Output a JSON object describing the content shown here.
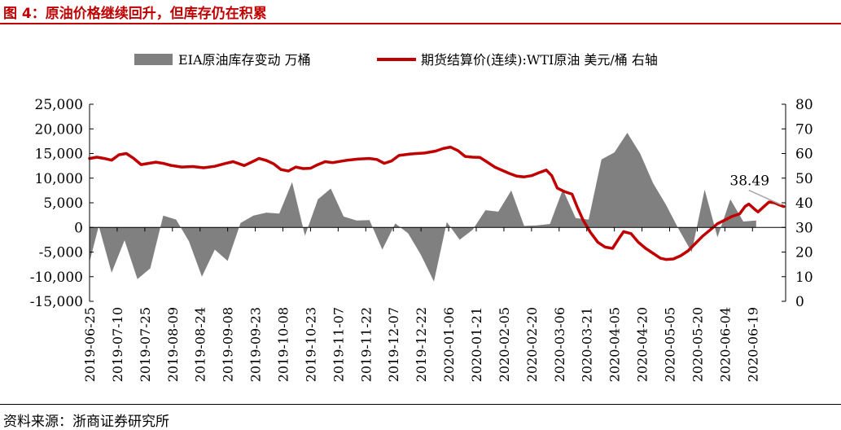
{
  "figure": {
    "title": "图 4：原油价格继续回升，但库存仍在积累",
    "source": "资料来源：浙商证券研究所"
  },
  "colors": {
    "bar": "#808080",
    "line": "#c00000",
    "title": "#c00000"
  },
  "chart_data": {
    "type": "area+line",
    "title": "原油价格继续回升，但库存仍在积累",
    "legend": [
      {
        "name": "EIA原油库存变动 万桶",
        "kind": "area",
        "axis": "left"
      },
      {
        "name": "期货结算价(连续):WTI原油 美元/桶 右轴",
        "kind": "line",
        "axis": "right"
      }
    ],
    "legend_position": "top",
    "x_tick_labels": [
      "2019-06-25",
      "2019-07-10",
      "2019-07-25",
      "2019-08-09",
      "2019-08-24",
      "2019-09-08",
      "2019-09-23",
      "2019-10-08",
      "2019-10-23",
      "2019-11-07",
      "2019-11-22",
      "2019-12-07",
      "2019-12-22",
      "2020-01-06",
      "2020-01-21",
      "2020-02-05",
      "2020-02-20",
      "2020-03-06",
      "2020-03-21",
      "2020-04-05",
      "2020-04-20",
      "2020-05-05",
      "2020-05-20",
      "2020-06-04",
      "2020-06-19"
    ],
    "x_range": [
      "2019-06-25",
      "2020-06-25"
    ],
    "left_axis": {
      "ylim": [
        -15000,
        25000
      ],
      "ticks": [
        "-15,000",
        "-10,000",
        "-5,000",
        "0",
        "5,000",
        "10,000",
        "15,000",
        "20,000",
        "25,000"
      ]
    },
    "right_axis": {
      "ylim": [
        0,
        80
      ],
      "ticks": [
        "0",
        "10",
        "20",
        "30",
        "40",
        "50",
        "60",
        "70",
        "80"
      ]
    },
    "inventory_change": [
      {
        "day": 0,
        "value": -7000
      },
      {
        "day": 5,
        "value": 300
      },
      {
        "day": 12,
        "value": -9200
      },
      {
        "day": 19,
        "value": -2600
      },
      {
        "day": 26,
        "value": -10500
      },
      {
        "day": 33,
        "value": -8300
      },
      {
        "day": 40,
        "value": 2400
      },
      {
        "day": 47,
        "value": 1600
      },
      {
        "day": 54,
        "value": -2800
      },
      {
        "day": 61,
        "value": -10000
      },
      {
        "day": 68,
        "value": -4500
      },
      {
        "day": 75,
        "value": -6800
      },
      {
        "day": 82,
        "value": 900
      },
      {
        "day": 89,
        "value": 2400
      },
      {
        "day": 96,
        "value": 3000
      },
      {
        "day": 103,
        "value": 2800
      },
      {
        "day": 110,
        "value": 9200
      },
      {
        "day": 117,
        "value": -1700
      },
      {
        "day": 124,
        "value": 5700
      },
      {
        "day": 131,
        "value": 7900
      },
      {
        "day": 138,
        "value": 2200
      },
      {
        "day": 145,
        "value": 1400
      },
      {
        "day": 152,
        "value": 1500
      },
      {
        "day": 159,
        "value": -4500
      },
      {
        "day": 166,
        "value": 800
      },
      {
        "day": 173,
        "value": -1200
      },
      {
        "day": 180,
        "value": -5600
      },
      {
        "day": 187,
        "value": -11000
      },
      {
        "day": 194,
        "value": 1100
      },
      {
        "day": 201,
        "value": -2500
      },
      {
        "day": 208,
        "value": -500
      },
      {
        "day": 215,
        "value": 3500
      },
      {
        "day": 222,
        "value": 3200
      },
      {
        "day": 229,
        "value": 7500
      },
      {
        "day": 236,
        "value": 300
      },
      {
        "day": 243,
        "value": 400
      },
      {
        "day": 250,
        "value": 700
      },
      {
        "day": 257,
        "value": 7700
      },
      {
        "day": 264,
        "value": 1900
      },
      {
        "day": 271,
        "value": 1600
      },
      {
        "day": 278,
        "value": 13800
      },
      {
        "day": 285,
        "value": 15200
      },
      {
        "day": 292,
        "value": 19200
      },
      {
        "day": 299,
        "value": 15000
      },
      {
        "day": 306,
        "value": 9000
      },
      {
        "day": 313,
        "value": 4600
      },
      {
        "day": 320,
        "value": -400
      },
      {
        "day": 327,
        "value": -5000
      },
      {
        "day": 334,
        "value": 7700
      },
      {
        "day": 341,
        "value": -2000
      },
      {
        "day": 348,
        "value": 5700
      },
      {
        "day": 355,
        "value": 1200
      },
      {
        "day": 362,
        "value": 1400
      }
    ],
    "wti_price": [
      {
        "day": 0,
        "value": 58
      },
      {
        "day": 4,
        "value": 58.5
      },
      {
        "day": 8,
        "value": 58
      },
      {
        "day": 12,
        "value": 57.3
      },
      {
        "day": 16,
        "value": 59.5
      },
      {
        "day": 20,
        "value": 60
      },
      {
        "day": 24,
        "value": 58
      },
      {
        "day": 28,
        "value": 55.5
      },
      {
        "day": 32,
        "value": 56
      },
      {
        "day": 36,
        "value": 56.5
      },
      {
        "day": 40,
        "value": 56
      },
      {
        "day": 44,
        "value": 55.2
      },
      {
        "day": 50,
        "value": 54.5
      },
      {
        "day": 56,
        "value": 54.7
      },
      {
        "day": 62,
        "value": 54.2
      },
      {
        "day": 68,
        "value": 54.8
      },
      {
        "day": 74,
        "value": 56
      },
      {
        "day": 78,
        "value": 56.7
      },
      {
        "day": 84,
        "value": 55.1
      },
      {
        "day": 88,
        "value": 56.5
      },
      {
        "day": 92,
        "value": 58
      },
      {
        "day": 96,
        "value": 57.2
      },
      {
        "day": 100,
        "value": 55.8
      },
      {
        "day": 104,
        "value": 53.5
      },
      {
        "day": 108,
        "value": 52.9
      },
      {
        "day": 112,
        "value": 54.5
      },
      {
        "day": 116,
        "value": 53.9
      },
      {
        "day": 120,
        "value": 54
      },
      {
        "day": 124,
        "value": 55.5
      },
      {
        "day": 128,
        "value": 56.7
      },
      {
        "day": 132,
        "value": 56.3
      },
      {
        "day": 136,
        "value": 56.8
      },
      {
        "day": 140,
        "value": 57.3
      },
      {
        "day": 146,
        "value": 57.8
      },
      {
        "day": 152,
        "value": 58
      },
      {
        "day": 156,
        "value": 57.6
      },
      {
        "day": 160,
        "value": 56
      },
      {
        "day": 164,
        "value": 57
      },
      {
        "day": 168,
        "value": 59.2
      },
      {
        "day": 174,
        "value": 59.8
      },
      {
        "day": 182,
        "value": 60.2
      },
      {
        "day": 188,
        "value": 61
      },
      {
        "day": 192,
        "value": 62
      },
      {
        "day": 196,
        "value": 62.6
      },
      {
        "day": 200,
        "value": 61.2
      },
      {
        "day": 204,
        "value": 58.8
      },
      {
        "day": 208,
        "value": 58.5
      },
      {
        "day": 212,
        "value": 58.4
      },
      {
        "day": 216,
        "value": 56.5
      },
      {
        "day": 220,
        "value": 54.5
      },
      {
        "day": 224,
        "value": 53.2
      },
      {
        "day": 228,
        "value": 51.9
      },
      {
        "day": 232,
        "value": 50.8
      },
      {
        "day": 236,
        "value": 50.5
      },
      {
        "day": 240,
        "value": 51
      },
      {
        "day": 244,
        "value": 52.2
      },
      {
        "day": 248,
        "value": 53.3
      },
      {
        "day": 251,
        "value": 51
      },
      {
        "day": 254,
        "value": 46
      },
      {
        "day": 258,
        "value": 44.5
      },
      {
        "day": 262,
        "value": 43.5
      },
      {
        "day": 265,
        "value": 38
      },
      {
        "day": 268,
        "value": 33
      },
      {
        "day": 272,
        "value": 28
      },
      {
        "day": 276,
        "value": 24
      },
      {
        "day": 280,
        "value": 22
      },
      {
        "day": 284,
        "value": 21.5
      },
      {
        "day": 287,
        "value": 25
      },
      {
        "day": 290,
        "value": 28.3
      },
      {
        "day": 294,
        "value": 27.5
      },
      {
        "day": 298,
        "value": 24
      },
      {
        "day": 302,
        "value": 21.5
      },
      {
        "day": 306,
        "value": 19.5
      },
      {
        "day": 310,
        "value": 17.5
      },
      {
        "day": 313,
        "value": 17
      },
      {
        "day": 317,
        "value": 17.2
      },
      {
        "day": 321,
        "value": 18.5
      },
      {
        "day": 325,
        "value": 20.5
      },
      {
        "day": 329,
        "value": 23.5
      },
      {
        "day": 333,
        "value": 26.5
      },
      {
        "day": 337,
        "value": 29
      },
      {
        "day": 341,
        "value": 31.5
      },
      {
        "day": 345,
        "value": 33
      },
      {
        "day": 349,
        "value": 34.5
      },
      {
        "day": 353,
        "value": 35.5
      },
      {
        "day": 356,
        "value": 38.5
      },
      {
        "day": 358,
        "value": 39.5
      },
      {
        "day": 361,
        "value": 37.5
      },
      {
        "day": 363,
        "value": 36.3
      },
      {
        "day": 366,
        "value": 38.3
      },
      {
        "day": 369,
        "value": 40.3
      },
      {
        "day": 372,
        "value": 40
      },
      {
        "day": 375,
        "value": 39
      },
      {
        "day": 377,
        "value": 38.49
      }
    ],
    "annotations": [
      {
        "text": "38.49",
        "series": "wti_price",
        "day": 377,
        "value": 38.49
      }
    ]
  }
}
